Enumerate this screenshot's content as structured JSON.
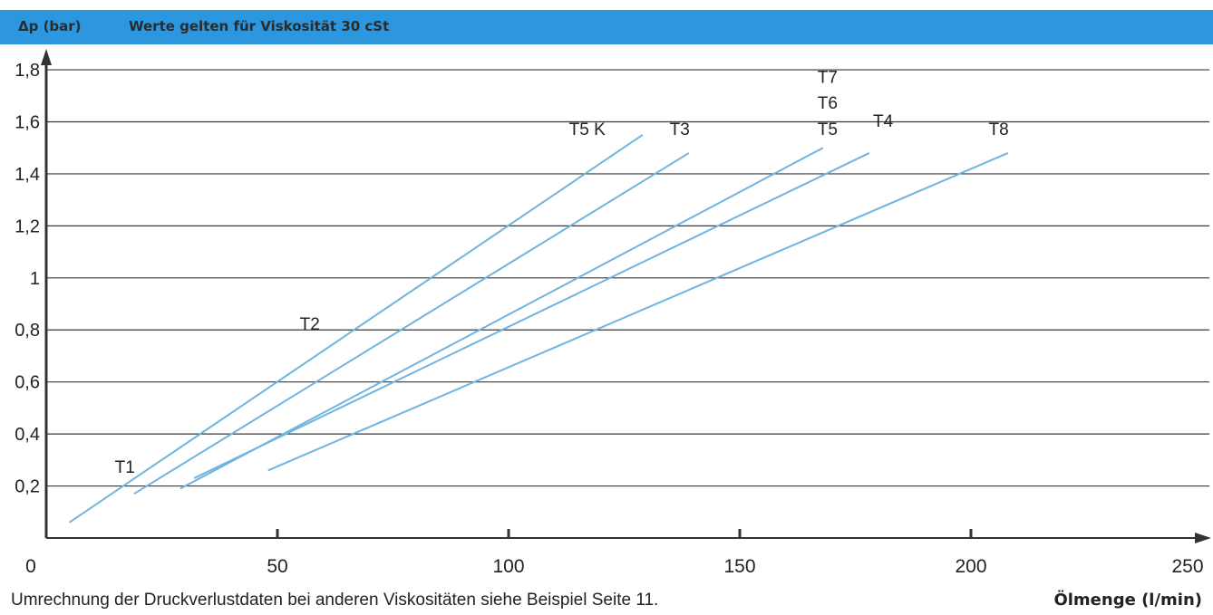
{
  "header": {
    "ylabel": "Δp (bar)",
    "note": "Werte gelten für Viskosität 30 cSt"
  },
  "footer": {
    "note": "Umrechnung der Druckverlustdaten bei anderen Viskositäten siehe Beispiel Seite 11.",
    "xlabel": "Ölmenge (l/min)"
  },
  "colors": {
    "header": "#2c97de",
    "line": "#6fb4e0",
    "grid": "#3a3a3a",
    "axis": "#333333"
  },
  "chart_data": {
    "type": "line",
    "title": "Werte gelten für Viskosität 30 cSt",
    "xlabel": "Ölmenge (l/min)",
    "ylabel": "Δp (bar)",
    "xlim": [
      0,
      250
    ],
    "ylim": [
      0,
      1.8
    ],
    "xticks": [
      0,
      50,
      100,
      150,
      200,
      250
    ],
    "xtick_labels": [
      "0",
      "50",
      "100",
      "150",
      "200",
      "250"
    ],
    "yticks": [
      0.2,
      0.4,
      0.6,
      0.8,
      1.0,
      1.2,
      1.4,
      1.6,
      1.8
    ],
    "ytick_labels": [
      "0,2",
      "0,4",
      "0,6",
      "0,8",
      "1",
      "1,2",
      "1,4",
      "1,6",
      "1,8"
    ],
    "grid": "horizontal",
    "series": [
      {
        "points": [
          [
            5,
            0.06
          ],
          [
            129,
            1.55
          ]
        ]
      },
      {
        "points": [
          [
            19,
            0.17
          ],
          [
            139,
            1.48
          ]
        ]
      },
      {
        "points": [
          [
            29,
            0.19
          ],
          [
            168,
            1.5
          ]
        ]
      },
      {
        "points": [
          [
            32,
            0.23
          ],
          [
            178,
            1.48
          ]
        ]
      },
      {
        "points": [
          [
            48,
            0.26
          ],
          [
            208,
            1.48
          ]
        ]
      }
    ],
    "annotations": [
      {
        "text": "T1",
        "x": 17,
        "y": 0.25
      },
      {
        "text": "T2",
        "x": 57,
        "y": 0.8
      },
      {
        "text": "T5 K",
        "x": 117,
        "y": 1.55
      },
      {
        "text": "T3",
        "x": 137,
        "y": 1.55
      },
      {
        "text": "T7",
        "x": 169,
        "y": 1.75
      },
      {
        "text": "T6",
        "x": 169,
        "y": 1.65
      },
      {
        "text": "T5",
        "x": 169,
        "y": 1.55
      },
      {
        "text": "T4",
        "x": 181,
        "y": 1.58
      },
      {
        "text": "T8",
        "x": 206,
        "y": 1.55
      }
    ]
  }
}
